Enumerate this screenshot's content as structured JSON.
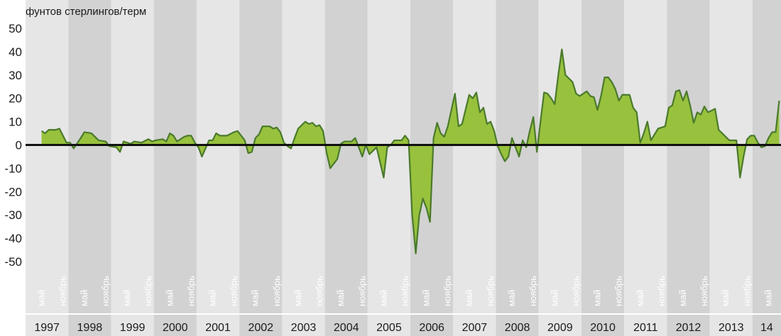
{
  "colors": {
    "band_light": "#e6e6e6",
    "band_dark": "#d2d2d2",
    "area_fill": "#98c13d",
    "line": "#4a7a2c",
    "zero_line": "#111111",
    "month_label": "#ffffff",
    "text": "#1a1a1a"
  },
  "chart_data": {
    "type": "area",
    "ylabel": "фунтов стерлингов/терм",
    "ylim": [
      -50,
      50
    ],
    "yticks": [
      "50",
      "40",
      "30",
      "20",
      "10",
      "0",
      "-10",
      "-20",
      "-30",
      "-40",
      "-50"
    ],
    "month_labels": [
      "май",
      "ноябрь"
    ],
    "years": [
      "1997",
      "1998",
      "1999",
      "2000",
      "2001",
      "2002",
      "2003",
      "2004",
      "2005",
      "2006",
      "2007",
      "2008",
      "2009",
      "2010",
      "2011",
      "2012",
      "2013",
      "14"
    ],
    "x_range": [
      "1997-01",
      "2014-08"
    ],
    "series": [
      {
        "values": [
          [
            "1997-05",
            6
          ],
          [
            "1997-06",
            5
          ],
          [
            "1997-07",
            6.5
          ],
          [
            "1997-09",
            6.5
          ],
          [
            "1997-10",
            7
          ],
          [
            "1997-12",
            1
          ],
          [
            "1998-01",
            1
          ],
          [
            "1998-02",
            -1.5
          ],
          [
            "1998-04",
            3
          ],
          [
            "1998-05",
            5.5
          ],
          [
            "1998-07",
            5
          ],
          [
            "1998-09",
            2
          ],
          [
            "1998-11",
            1.5
          ],
          [
            "1998-12",
            -0.5
          ],
          [
            "1999-02",
            -1
          ],
          [
            "1999-03",
            -3
          ],
          [
            "1999-04",
            1.5
          ],
          [
            "1999-06",
            0.5
          ],
          [
            "1999-07",
            1.5
          ],
          [
            "1999-09",
            1
          ],
          [
            "1999-11",
            2.5
          ],
          [
            "1999-12",
            1.5
          ],
          [
            "2000-01",
            2
          ],
          [
            "2000-03",
            2.5
          ],
          [
            "2000-04",
            1.5
          ],
          [
            "2000-05",
            5
          ],
          [
            "2000-06",
            4
          ],
          [
            "2000-07",
            1.5
          ],
          [
            "2000-09",
            3.5
          ],
          [
            "2000-10",
            4
          ],
          [
            "2000-11",
            4
          ],
          [
            "2000-12",
            1
          ],
          [
            "2001-01",
            -1
          ],
          [
            "2001-02",
            -5
          ],
          [
            "2001-04",
            2
          ],
          [
            "2001-05",
            2
          ],
          [
            "2001-06",
            5
          ],
          [
            "2001-07",
            4
          ],
          [
            "2001-09",
            4
          ],
          [
            "2001-11",
            5.5
          ],
          [
            "2001-12",
            6
          ],
          [
            "2002-02",
            2
          ],
          [
            "2002-03",
            -3.5
          ],
          [
            "2002-04",
            -3
          ],
          [
            "2002-05",
            3
          ],
          [
            "2002-06",
            4.5
          ],
          [
            "2002-07",
            8
          ],
          [
            "2002-09",
            8
          ],
          [
            "2002-10",
            7
          ],
          [
            "2002-11",
            7.5
          ],
          [
            "2002-12",
            5.5
          ],
          [
            "2003-01",
            1
          ],
          [
            "2003-02",
            -0.5
          ],
          [
            "2003-03",
            -1.5
          ],
          [
            "2003-04",
            3
          ],
          [
            "2003-05",
            7
          ],
          [
            "2003-07",
            10
          ],
          [
            "2003-08",
            9
          ],
          [
            "2003-09",
            9.5
          ],
          [
            "2003-10",
            8
          ],
          [
            "2003-11",
            8.5
          ],
          [
            "2003-12",
            6
          ],
          [
            "2004-01",
            -3.5
          ],
          [
            "2004-02",
            -10
          ],
          [
            "2004-03",
            -8
          ],
          [
            "2004-04",
            -6
          ],
          [
            "2004-05",
            0.5
          ],
          [
            "2004-06",
            1.5
          ],
          [
            "2004-08",
            1.5
          ],
          [
            "2004-09",
            3
          ],
          [
            "2004-11",
            -5
          ],
          [
            "2004-12",
            0
          ],
          [
            "2005-01",
            -4
          ],
          [
            "2005-03",
            -1
          ],
          [
            "2005-05",
            -14
          ],
          [
            "2005-06",
            -1
          ],
          [
            "2005-07",
            0
          ],
          [
            "2005-08",
            2
          ],
          [
            "2005-10",
            2
          ],
          [
            "2005-11",
            4
          ],
          [
            "2005-12",
            2
          ],
          [
            "2006-01",
            -30
          ],
          [
            "2006-02",
            -46.5
          ],
          [
            "2006-03",
            -30
          ],
          [
            "2006-04",
            -23
          ],
          [
            "2006-05",
            -27
          ],
          [
            "2006-06",
            -33
          ],
          [
            "2006-07",
            3
          ],
          [
            "2006-08",
            9.5
          ],
          [
            "2006-09",
            5
          ],
          [
            "2006-10",
            3.5
          ],
          [
            "2006-11",
            8
          ],
          [
            "2007-01",
            22
          ],
          [
            "2007-02",
            8
          ],
          [
            "2007-03",
            9
          ],
          [
            "2007-05",
            21.5
          ],
          [
            "2007-06",
            20
          ],
          [
            "2007-07",
            22.5
          ],
          [
            "2007-08",
            14
          ],
          [
            "2007-09",
            16
          ],
          [
            "2007-10",
            9
          ],
          [
            "2007-11",
            10
          ],
          [
            "2007-12",
            6
          ],
          [
            "2008-01",
            -0.5
          ],
          [
            "2008-02",
            -4
          ],
          [
            "2008-03",
            -7
          ],
          [
            "2008-04",
            -5
          ],
          [
            "2008-05",
            3
          ],
          [
            "2008-07",
            -5
          ],
          [
            "2008-08",
            2
          ],
          [
            "2008-09",
            -1
          ],
          [
            "2008-10",
            6
          ],
          [
            "2008-11",
            12
          ],
          [
            "2008-12",
            -3
          ],
          [
            "2009-01",
            10
          ],
          [
            "2009-02",
            22.5
          ],
          [
            "2009-03",
            22
          ],
          [
            "2009-04",
            20
          ],
          [
            "2009-05",
            17.5
          ],
          [
            "2009-06",
            30
          ],
          [
            "2009-07",
            41
          ],
          [
            "2009-08",
            30
          ],
          [
            "2009-10",
            27
          ],
          [
            "2009-11",
            22
          ],
          [
            "2009-12",
            21
          ],
          [
            "2010-02",
            23
          ],
          [
            "2010-03",
            21
          ],
          [
            "2010-04",
            20.5
          ],
          [
            "2010-05",
            15
          ],
          [
            "2010-06",
            21
          ],
          [
            "2010-07",
            29
          ],
          [
            "2010-08",
            29
          ],
          [
            "2010-09",
            27
          ],
          [
            "2010-10",
            24
          ],
          [
            "2010-11",
            19
          ],
          [
            "2010-12",
            21.5
          ],
          [
            "2011-02",
            21.5
          ],
          [
            "2011-03",
            16
          ],
          [
            "2011-04",
            14
          ],
          [
            "2011-05",
            1
          ],
          [
            "2011-06",
            5
          ],
          [
            "2011-07",
            10
          ],
          [
            "2011-08",
            2
          ],
          [
            "2011-10",
            7
          ],
          [
            "2011-12",
            8
          ],
          [
            "2012-01",
            16
          ],
          [
            "2012-02",
            17
          ],
          [
            "2012-03",
            23
          ],
          [
            "2012-04",
            23.5
          ],
          [
            "2012-05",
            19
          ],
          [
            "2012-06",
            23
          ],
          [
            "2012-07",
            17
          ],
          [
            "2012-08",
            9.5
          ],
          [
            "2012-09",
            14
          ],
          [
            "2012-10",
            13
          ],
          [
            "2012-11",
            16.5
          ],
          [
            "2012-12",
            14
          ],
          [
            "2013-02",
            15.5
          ],
          [
            "2013-03",
            6.5
          ],
          [
            "2013-04",
            5
          ],
          [
            "2013-05",
            3.5
          ],
          [
            "2013-06",
            2
          ],
          [
            "2013-08",
            2
          ],
          [
            "2013-09",
            -14
          ],
          [
            "2013-10",
            -5
          ],
          [
            "2013-11",
            2.5
          ],
          [
            "2013-12",
            4
          ],
          [
            "2014-01",
            4
          ],
          [
            "2014-02",
            1
          ],
          [
            "2014-03",
            -1
          ],
          [
            "2014-04",
            -0.5
          ],
          [
            "2014-05",
            3
          ],
          [
            "2014-06",
            5.5
          ],
          [
            "2014-07",
            5.5
          ],
          [
            "2014-08",
            19
          ]
        ]
      }
    ]
  }
}
